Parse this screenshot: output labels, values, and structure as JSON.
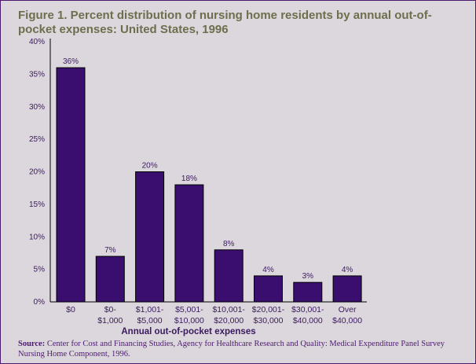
{
  "chart_data": {
    "type": "bar",
    "title": "Figure 1. Percent distribution of nursing home residents by annual out-of-pocket expenses: United States, 1996",
    "xlabel": "Annual out-of-pocket expenses",
    "ylabel": "",
    "ylim": [
      0,
      40
    ],
    "yticks": [
      "0%",
      "5%",
      "10%",
      "15%",
      "20%",
      "25%",
      "30%",
      "35%",
      "40%"
    ],
    "categories": [
      [
        "$0"
      ],
      [
        "$0-",
        "$1,000"
      ],
      [
        "$1,001-",
        "$5,000"
      ],
      [
        "$5,001-",
        "$10,000"
      ],
      [
        "$10,001-",
        "$20,000"
      ],
      [
        "$20,001-",
        "$30,000"
      ],
      [
        "$30,001-",
        "$40,000"
      ],
      [
        "Over",
        "$40,000"
      ]
    ],
    "values": [
      36,
      7,
      20,
      18,
      8,
      4,
      3,
      4
    ],
    "data_labels": [
      "36%",
      "7%",
      "20%",
      "18%",
      "8%",
      "4%",
      "3%",
      "4%"
    ],
    "grid": false,
    "bar_color": "#3a0e6e"
  },
  "source": {
    "label": "Source:",
    "text": " Center for Cost and Financing Studies, Agency for Healthcare Research and Quality: Medical Expenditure Panel Survey Nursing Home Component, 1996."
  }
}
